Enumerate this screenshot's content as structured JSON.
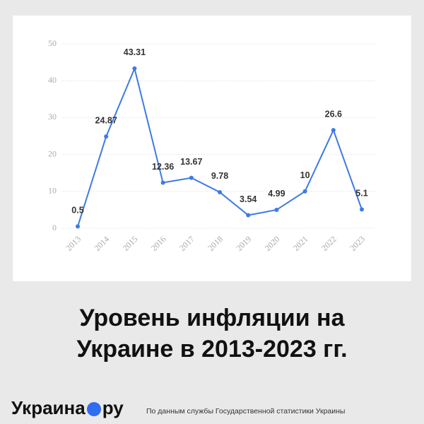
{
  "chart_data": {
    "type": "line",
    "title": "Уровень инфляции на Украине в 2013-2023 гг.",
    "categories": [
      "2013",
      "2014",
      "2015",
      "2016",
      "2017",
      "2018",
      "2019",
      "2020",
      "2021",
      "2022",
      "2023"
    ],
    "series": [
      {
        "color": "#3d7ae6",
        "values": [
          0.5,
          24.87,
          43.31,
          12.36,
          13.67,
          9.78,
          3.54,
          4.99,
          10,
          26.6,
          5.1
        ]
      }
    ],
    "ylim": [
      0,
      50
    ],
    "yticks": [
      0,
      10,
      20,
      30,
      40,
      50
    ],
    "grid": true
  },
  "footer": {
    "logo_left": "Украина",
    "logo_right": "ру",
    "source": "По данным службы Государственной статистики Украины"
  }
}
